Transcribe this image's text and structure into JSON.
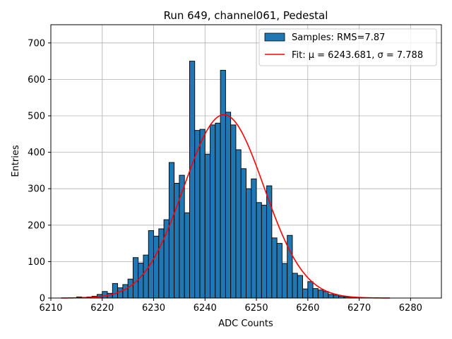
{
  "chart_data": {
    "type": "bar",
    "title": "Run 649, channel061, Pedestal",
    "xlabel": "ADC Counts",
    "ylabel": "Entries",
    "xlim": [
      6210,
      6286
    ],
    "ylim": [
      0,
      750
    ],
    "x_ticks": [
      6210,
      6220,
      6230,
      6240,
      6250,
      6260,
      6270,
      6280
    ],
    "y_ticks": [
      0,
      100,
      200,
      300,
      400,
      500,
      600,
      700
    ],
    "grid": true,
    "legend_position": "top-right",
    "colors": {
      "bars": "#1f77b4",
      "fit": "#ff0000"
    },
    "legend": [
      {
        "label": "Samples: RMS=7.87",
        "kind": "patch",
        "color": "#1f77b4"
      },
      {
        "label": "Fit: μ = 6243.681, σ = 7.788",
        "kind": "line",
        "color": "#ff0000"
      }
    ],
    "histogram": {
      "series_name": "Samples: RMS=7.87",
      "bin_start": 6215,
      "bin_width": 1,
      "counts": [
        3,
        2,
        3,
        5,
        10,
        18,
        13,
        40,
        28,
        37,
        52,
        111,
        96,
        118,
        185,
        170,
        190,
        215,
        372,
        315,
        337,
        234,
        650,
        460,
        463,
        395,
        475,
        480,
        625,
        510,
        475,
        407,
        355,
        300,
        327,
        262,
        255,
        308,
        165,
        150,
        95,
        172,
        68,
        62,
        25,
        45,
        26,
        22,
        18,
        10,
        8,
        5,
        3,
        2,
        1
      ]
    },
    "fit": {
      "series_name": "Fit: μ = 6243.681, σ = 7.788",
      "mu": 6243.681,
      "sigma": 7.788,
      "amplitude": 503,
      "x_range": [
        6212,
        6276
      ]
    }
  }
}
